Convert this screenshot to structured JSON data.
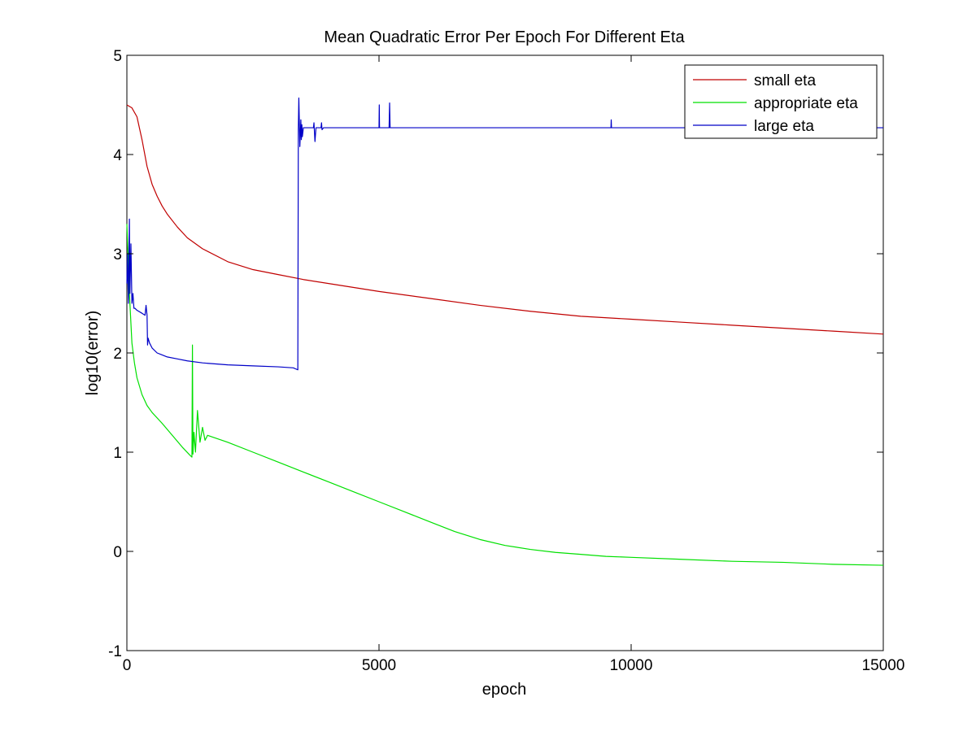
{
  "chart_data": {
    "type": "line",
    "title": "Mean Quadratic Error Per Epoch For Different Eta",
    "xlabel": "epoch",
    "ylabel": "log10(error)",
    "xlim": [
      0,
      15000
    ],
    "ylim": [
      -1,
      5
    ],
    "xticks": [
      0,
      5000,
      10000,
      15000
    ],
    "xtick_labels": [
      "0",
      "5000",
      "10000",
      "15000"
    ],
    "yticks": [
      -1,
      0,
      1,
      2,
      3,
      4,
      5
    ],
    "ytick_labels": [
      "-1",
      "0",
      "1",
      "2",
      "3",
      "4",
      "5"
    ],
    "grid": false,
    "legend_position": "top-right",
    "series": [
      {
        "name": "small eta",
        "color": "#c00000",
        "x": [
          0,
          100,
          200,
          300,
          400,
          500,
          600,
          700,
          800,
          1000,
          1200,
          1500,
          2000,
          2500,
          3000,
          3500,
          4000,
          5000,
          6000,
          7000,
          8000,
          9000,
          10000,
          11000,
          12000,
          13000,
          14000,
          15000
        ],
        "y": [
          4.5,
          4.47,
          4.38,
          4.15,
          3.88,
          3.7,
          3.58,
          3.48,
          3.4,
          3.27,
          3.16,
          3.05,
          2.92,
          2.84,
          2.79,
          2.74,
          2.7,
          2.62,
          2.55,
          2.48,
          2.42,
          2.37,
          2.34,
          2.31,
          2.28,
          2.25,
          2.22,
          2.19
        ]
      },
      {
        "name": "appropriate eta",
        "color": "#00e000",
        "x": [
          0,
          50,
          100,
          150,
          200,
          300,
          400,
          500,
          700,
          900,
          1100,
          1250,
          1290,
          1300,
          1310,
          1330,
          1360,
          1400,
          1450,
          1500,
          1550,
          1600,
          2000,
          2500,
          3000,
          3500,
          4000,
          4500,
          5000,
          5500,
          6000,
          6500,
          7000,
          7500,
          8000,
          8500,
          9000,
          9500,
          10000,
          11000,
          12000,
          13000,
          14000,
          15000
        ],
        "y": [
          3.3,
          2.6,
          2.1,
          1.9,
          1.75,
          1.58,
          1.47,
          1.4,
          1.29,
          1.17,
          1.05,
          0.97,
          0.95,
          2.08,
          0.98,
          1.2,
          1.0,
          1.42,
          1.1,
          1.25,
          1.12,
          1.17,
          1.1,
          1.0,
          0.9,
          0.8,
          0.7,
          0.6,
          0.5,
          0.4,
          0.3,
          0.2,
          0.12,
          0.06,
          0.02,
          -0.01,
          -0.03,
          -0.05,
          -0.06,
          -0.08,
          -0.1,
          -0.11,
          -0.13,
          -0.14
        ]
      },
      {
        "name": "large eta",
        "color": "#0000c8",
        "x": [
          0,
          10,
          30,
          50,
          60,
          80,
          100,
          120,
          140,
          160,
          200,
          300,
          360,
          380,
          400,
          410,
          420,
          450,
          500,
          600,
          700,
          800,
          1000,
          1200,
          1500,
          2000,
          2500,
          3000,
          3300,
          3390,
          3400,
          3410,
          3430,
          3450,
          3460,
          3470,
          3480,
          3500,
          3600,
          3700,
          3710,
          3730,
          3750,
          3850,
          3860,
          3870,
          3900,
          5000,
          5005,
          5010,
          5200,
          5210,
          5220,
          5240,
          9600,
          9605,
          9610,
          15000
        ],
        "y": [
          2.7,
          3.0,
          2.5,
          3.35,
          2.6,
          3.1,
          2.5,
          2.6,
          2.45,
          2.45,
          2.43,
          2.4,
          2.38,
          2.48,
          2.38,
          2.08,
          2.15,
          2.1,
          2.05,
          2.0,
          1.98,
          1.96,
          1.94,
          1.92,
          1.9,
          1.88,
          1.87,
          1.86,
          1.85,
          1.83,
          4.25,
          4.57,
          4.08,
          4.35,
          4.15,
          4.3,
          4.18,
          4.27,
          4.27,
          4.27,
          4.32,
          4.13,
          4.27,
          4.27,
          4.32,
          4.25,
          4.27,
          4.27,
          4.5,
          4.27,
          4.27,
          4.52,
          4.27,
          4.27,
          4.27,
          4.35,
          4.27,
          4.27
        ]
      }
    ]
  }
}
